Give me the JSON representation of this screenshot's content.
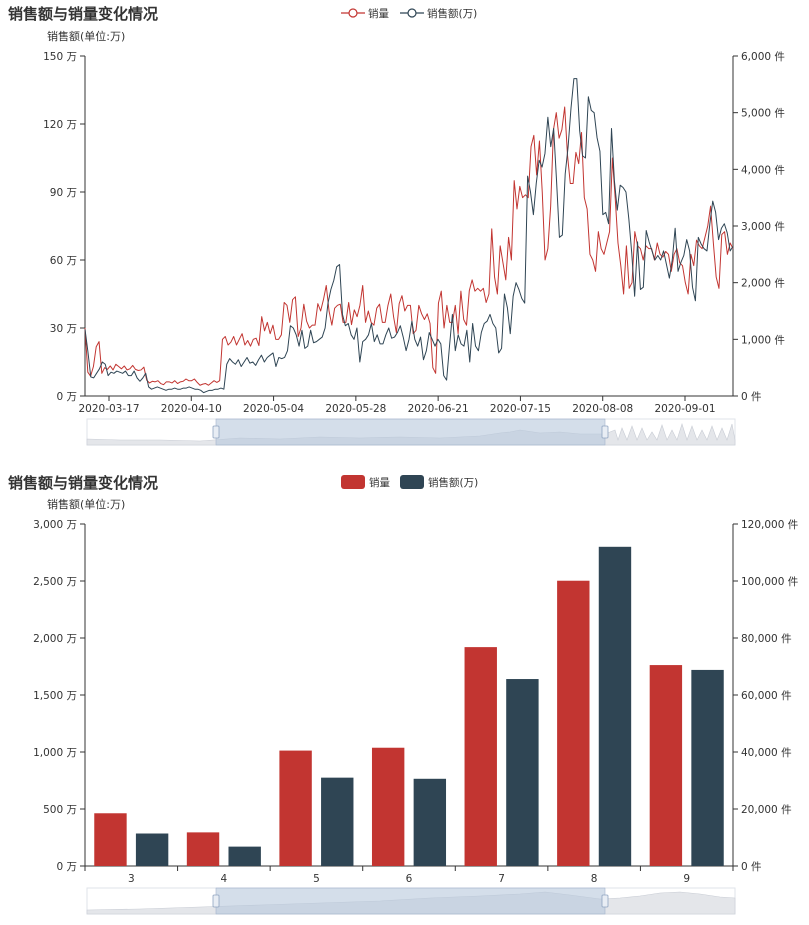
{
  "chart_data": [
    {
      "type": "line",
      "title": "销售额与销量变化情况",
      "ylabel": "销售额(单位:万)",
      "legend_position": "top-center",
      "grid": false,
      "colors": {
        "销量": "#c23531",
        "销售额(万)": "#2f4554"
      },
      "yleft": {
        "unit_suffix": " 万",
        "ticks": [
          0,
          30,
          60,
          90,
          120,
          150
        ],
        "tick_labels": [
          "0 万",
          "30 万",
          "60 万",
          "90 万",
          "120 万",
          "150 万"
        ],
        "ylim": [
          0,
          150
        ]
      },
      "yright": {
        "unit_suffix": " 件",
        "ticks": [
          0,
          1000,
          2000,
          3000,
          4000,
          5000,
          6000
        ],
        "tick_labels": [
          "0 件",
          "1,000 件",
          "2,000 件",
          "3,000 件",
          "4,000 件",
          "5,000 件",
          "6,000 件"
        ],
        "ylim": [
          0,
          6000
        ]
      },
      "x_tick_labels": [
        "2020-03-17",
        "2020-04-10",
        "2020-05-04",
        "2020-05-28",
        "2020-06-21",
        "2020-07-15",
        "2020-08-08",
        "2020-09-01"
      ],
      "x_start": "2020-03-10",
      "x_end": "2020-09-15",
      "series": [
        {
          "name": "销量",
          "axis": "right",
          "values": [
            1200,
            420,
            350,
            520,
            870,
            960,
            400,
            500,
            470,
            530,
            460,
            560,
            520,
            480,
            530,
            460,
            480,
            540,
            470,
            450,
            460,
            510,
            280,
            230,
            260,
            250,
            270,
            220,
            200,
            250,
            250,
            230,
            270,
            220,
            250,
            260,
            300,
            270,
            270,
            300,
            240,
            190,
            210,
            220,
            190,
            230,
            270,
            240,
            270,
            1000,
            1050,
            900,
            950,
            1050,
            900,
            1000,
            1100,
            900,
            980,
            880,
            1000,
            1020,
            890,
            1400,
            1150,
            1300,
            1100,
            1250,
            1000,
            1000,
            1080,
            1650,
            1600,
            1300,
            1700,
            1750,
            1050,
            1200,
            1620,
            1320,
            1200,
            1250,
            1250,
            1630,
            1500,
            1700,
            1950,
            1500,
            1250,
            1550,
            1600,
            1620,
            1300,
            1300,
            1650,
            1260,
            1520,
            1400,
            1600,
            1950,
            1300,
            1500,
            1300,
            1250,
            1550,
            1620,
            1300,
            1300,
            1600,
            1800,
            1400,
            1120,
            1630,
            1770,
            1500,
            1600,
            1600,
            1100,
            1160,
            1600,
            1450,
            1350,
            1450,
            1280,
            500,
            400,
            1640,
            1850,
            1200,
            1600,
            1300,
            1300,
            1600,
            1100,
            1850,
            1350,
            1250,
            1860,
            2050,
            1850,
            1900,
            1850,
            1900,
            1650,
            1800,
            2950,
            2100,
            1800,
            2650,
            2350,
            2050,
            2800,
            2400,
            3800,
            3300,
            3700,
            3500,
            3550,
            3500,
            4400,
            4600,
            3900,
            4500,
            3600,
            2400,
            2600,
            3350,
            4700,
            5000,
            4550,
            4700,
            5100,
            4250,
            3750,
            3750,
            4300,
            4100,
            4650,
            3500,
            3300,
            2500,
            2400,
            2200,
            2900,
            2600,
            2500,
            2700,
            2900,
            4200,
            3500,
            2700,
            2300,
            1800,
            2650,
            1900,
            2000,
            2900,
            2650,
            2600,
            2400,
            2650,
            2600,
            2600,
            2400,
            2700,
            2500,
            2450,
            2550,
            2500,
            2200,
            2500,
            2600,
            2350,
            2300,
            2000,
            1800,
            2500,
            2300,
            2750,
            2650,
            2600,
            2800,
            3000,
            3350,
            2700,
            2100,
            1900,
            2850,
            2900,
            2500,
            2700,
            2600
          ]
        },
        {
          "name": "销售额(万)",
          "axis": "left",
          "values": [
            29.4,
            19.6,
            8.4,
            8.0,
            10.0,
            12.0,
            15.0,
            14.0,
            9.0,
            10.5,
            10.0,
            11.0,
            10.5,
            10.0,
            11.0,
            9.0,
            9.0,
            11.0,
            8.0,
            6.5,
            8.0,
            10.0,
            4.0,
            3.0,
            3.5,
            4.0,
            3.5,
            3.0,
            2.5,
            3.0,
            3.0,
            3.5,
            3.0,
            3.0,
            3.5,
            3.5,
            4.0,
            3.5,
            3.0,
            3.0,
            2.5,
            1.5,
            2.0,
            2.5,
            2.5,
            3.0,
            3.0,
            3.5,
            3.0,
            14.0,
            16.5,
            15.0,
            14.0,
            16.0,
            13.0,
            15.0,
            17.0,
            14.5,
            15.0,
            13.5,
            16.0,
            18.0,
            15.0,
            17.0,
            18.0,
            19.0,
            13.0,
            17.0,
            16.5,
            17.0,
            20.0,
            31.0,
            30.0,
            27.0,
            22.0,
            29.0,
            21.0,
            22.0,
            29.0,
            23.5,
            24.0,
            25.0,
            26.0,
            30.0,
            41.0,
            47.0,
            51.0,
            57.0,
            58.0,
            36.0,
            31.0,
            32.0,
            27.0,
            25.0,
            30.0,
            15.0,
            24.0,
            25.0,
            27.0,
            32.0,
            24.0,
            27.0,
            23.0,
            23.0,
            27.0,
            30.0,
            25.5,
            26.0,
            28.0,
            31.0,
            26.0,
            20.0,
            25.0,
            33.0,
            25.0,
            22.0,
            26.0,
            16.0,
            20.0,
            28.0,
            25.0,
            22.0,
            25.0,
            23.0,
            9.0,
            7.0,
            22.0,
            36.0,
            20.0,
            27.0,
            23.0,
            22.0,
            29.0,
            15.0,
            32.0,
            22.0,
            20.0,
            28.0,
            32.0,
            33.0,
            36.0,
            32.0,
            30.0,
            19.0,
            21.0,
            45.0,
            39.0,
            27.5,
            44.0,
            50.0,
            47.0,
            43.0,
            41.0,
            97.0,
            90.0,
            80.0,
            94.0,
            104.0,
            101.0,
            107.0,
            123.0,
            110.0,
            118.0,
            95.0,
            70.0,
            71.0,
            98.0,
            110.0,
            127.0,
            140.0,
            140.0,
            117.0,
            106.0,
            105.0,
            132.0,
            126.0,
            125.0,
            114.0,
            108.0,
            80.0,
            81.0,
            76.0,
            118.0,
            95.0,
            82.0,
            93.0,
            92.0,
            90.0,
            78.0,
            63.0,
            44.0,
            68.0,
            47.0,
            48.0,
            73.0,
            68.0,
            64.0,
            60.0,
            62.0,
            60.0,
            64.0,
            58.0,
            52.0,
            60.0,
            74.0,
            55.0,
            59.0,
            62.0,
            69.0,
            64.0,
            48.0,
            42.0,
            70.0,
            67.0,
            65.0,
            64.0,
            76.0,
            86.0,
            81.0,
            69.0,
            74.0,
            76.0,
            72.0,
            64.0,
            66.0
          ]
        }
      ]
    },
    {
      "type": "bar",
      "title": "销售额与销量变化情况",
      "ylabel": "销售额(单位:万)",
      "legend_position": "top-center",
      "grid": false,
      "categories": [
        "3",
        "4",
        "5",
        "6",
        "7",
        "8",
        "9"
      ],
      "colors": {
        "销量": "#c23531",
        "销售额(万)": "#2f4554"
      },
      "yleft": {
        "unit_suffix": " 万",
        "ticks": [
          0,
          500,
          1000,
          1500,
          2000,
          2500,
          3000
        ],
        "tick_labels": [
          "0 万",
          "500 万",
          "1,000 万",
          "1,500 万",
          "2,000 万",
          "2,500 万",
          "3,000 万"
        ],
        "ylim": [
          0,
          3000
        ]
      },
      "yright": {
        "unit_suffix": " 件",
        "ticks": [
          0,
          20000,
          40000,
          60000,
          80000,
          100000,
          120000
        ],
        "tick_labels": [
          "0 件",
          "20,000 件",
          "40,000 件",
          "60,000 件",
          "80,000 件",
          "100,000 件",
          "120,000 件"
        ],
        "ylim": [
          0,
          120000
        ]
      },
      "series": [
        {
          "name": "销量",
          "axis": "right",
          "values": [
            18500,
            11800,
            40500,
            41500,
            76800,
            100100,
            70500
          ]
        },
        {
          "name": "销售额(万)",
          "axis": "left",
          "values": [
            285,
            170,
            775,
            765,
            1640,
            2800,
            1720
          ]
        }
      ]
    }
  ]
}
